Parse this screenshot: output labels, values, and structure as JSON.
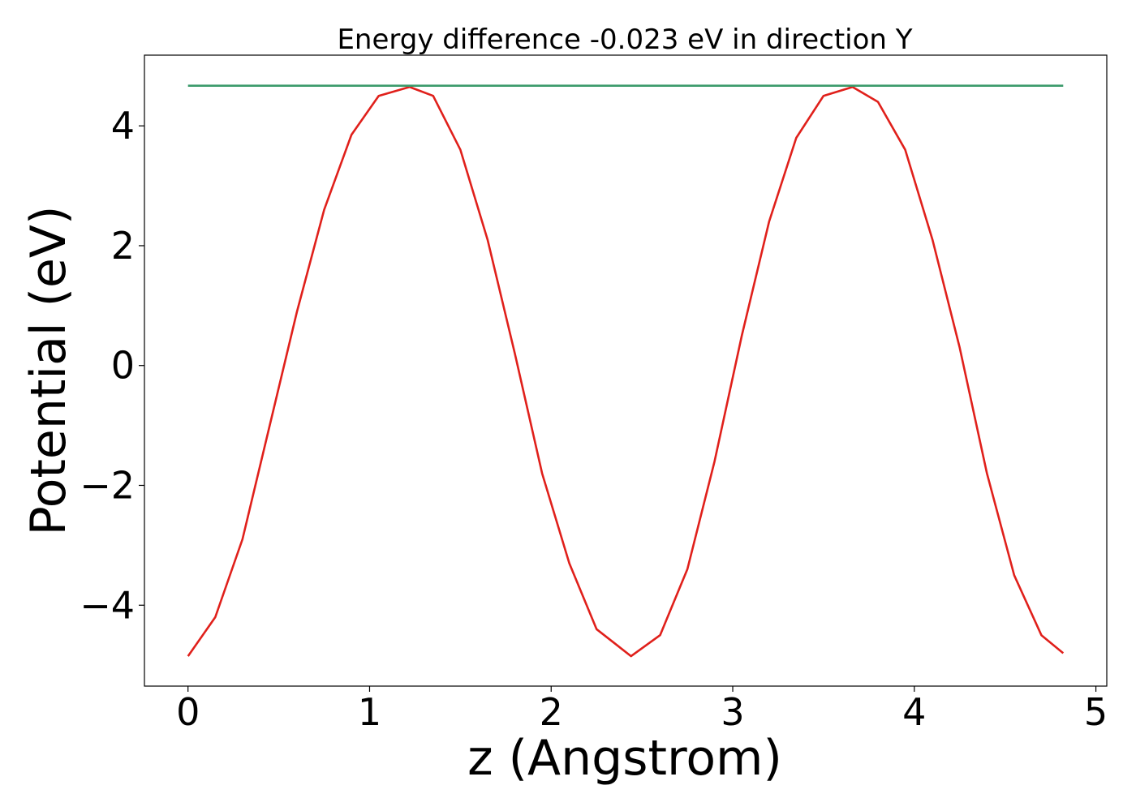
{
  "chart_data": {
    "type": "line",
    "title": "Energy difference -0.023 eV in direction Y",
    "xlabel": "z (Angstrom)",
    "ylabel": "Potential (eV)",
    "xlim": [
      -0.24,
      5.06
    ],
    "ylim": [
      -5.35,
      5.18
    ],
    "xticks": [
      0,
      1,
      2,
      3,
      4,
      5
    ],
    "yticks": [
      -4,
      -2,
      0,
      2,
      4
    ],
    "xtick_labels": [
      "0",
      "1",
      "2",
      "3",
      "4",
      "5"
    ],
    "ytick_labels": [
      "−4",
      "−2",
      "0",
      "2",
      "4"
    ],
    "grid": false,
    "series": [
      {
        "color": "#e0201b",
        "x": [
          0.0,
          0.15,
          0.3,
          0.45,
          0.6,
          0.75,
          0.9,
          1.05,
          1.22,
          1.35,
          1.5,
          1.65,
          1.8,
          1.95,
          2.1,
          2.25,
          2.44,
          2.6,
          2.75,
          2.9,
          3.05,
          3.2,
          3.35,
          3.5,
          3.66,
          3.8,
          3.95,
          4.1,
          4.25,
          4.4,
          4.55,
          4.7,
          4.82
        ],
        "y": [
          -4.85,
          -4.2,
          -2.9,
          -1.0,
          0.9,
          2.6,
          3.85,
          4.5,
          4.65,
          4.5,
          3.6,
          2.1,
          0.2,
          -1.8,
          -3.3,
          -4.4,
          -4.85,
          -4.5,
          -3.4,
          -1.6,
          0.5,
          2.4,
          3.8,
          4.5,
          4.65,
          4.4,
          3.6,
          2.1,
          0.3,
          -1.8,
          -3.5,
          -4.5,
          -4.8
        ]
      },
      {
        "color": "#3a9a6b",
        "x": [
          0.0,
          4.82
        ],
        "y": [
          4.67,
          4.67
        ]
      }
    ]
  }
}
